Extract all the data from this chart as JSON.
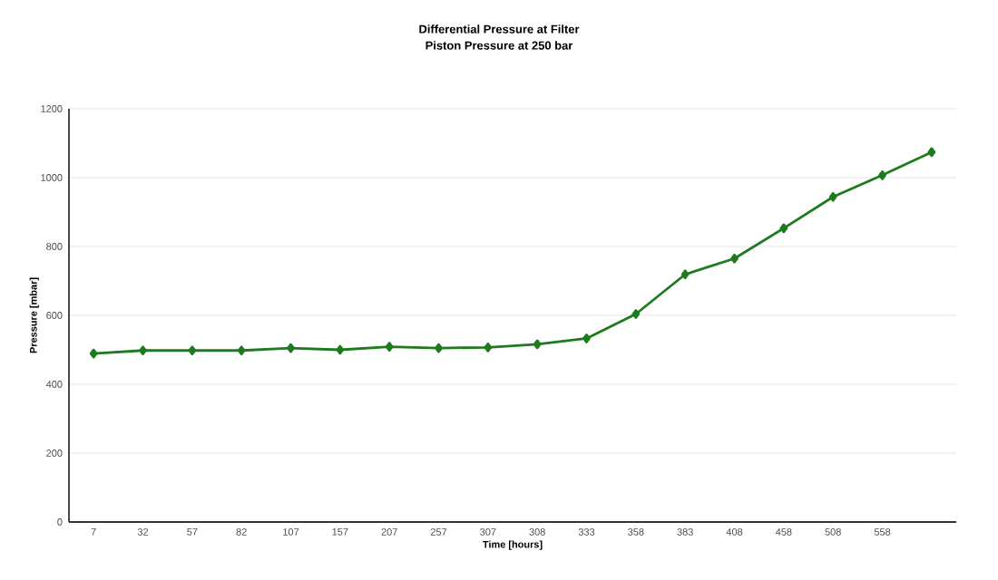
{
  "chart_data": {
    "type": "line",
    "title": "Differential Pressure at Filter",
    "subtitle": "Piston Pressure at 250 bar",
    "xlabel": "Time [hours]",
    "ylabel": "Pressure [mbar]",
    "categories": [
      "7",
      "32",
      "57",
      "82",
      "107",
      "157",
      "207",
      "257",
      "307",
      "308",
      "333",
      "358",
      "383",
      "408",
      "458",
      "508",
      "558",
      null
    ],
    "series": [
      {
        "color": "#1e7a1e",
        "values": [
          489,
          498,
          498,
          498,
          505,
          500,
          509,
          505,
          507,
          516,
          533,
          604,
          719,
          765,
          853,
          944,
          1007,
          1074
        ]
      }
    ],
    "ylim": [
      0,
      1200
    ],
    "yticks": [
      0,
      200,
      400,
      600,
      800,
      1000,
      1200
    ],
    "grid": "y",
    "marker": "diamond",
    "line_style": "solid"
  }
}
